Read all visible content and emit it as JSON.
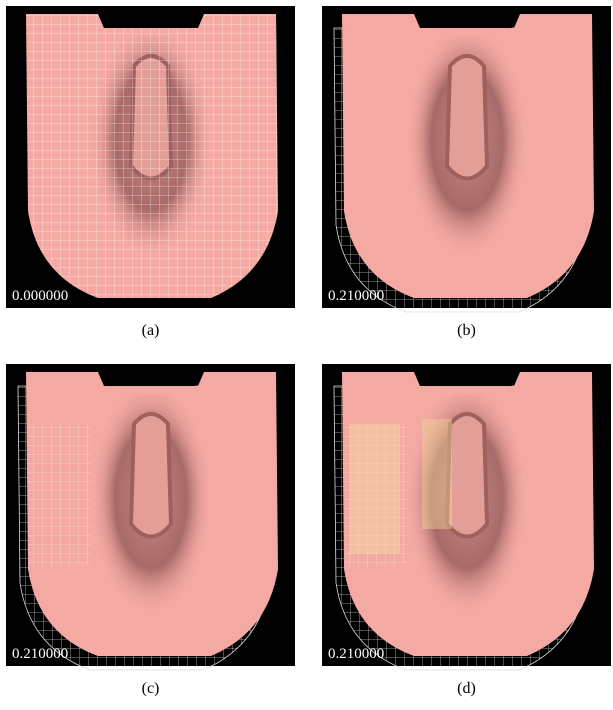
{
  "panels": [
    {
      "time": "0.000000",
      "caption": "(a)"
    },
    {
      "time": "0.210000",
      "caption": "(b)"
    },
    {
      "time": "0.210000",
      "caption": "(c)"
    },
    {
      "time": "0.210000",
      "caption": "(d)"
    }
  ]
}
